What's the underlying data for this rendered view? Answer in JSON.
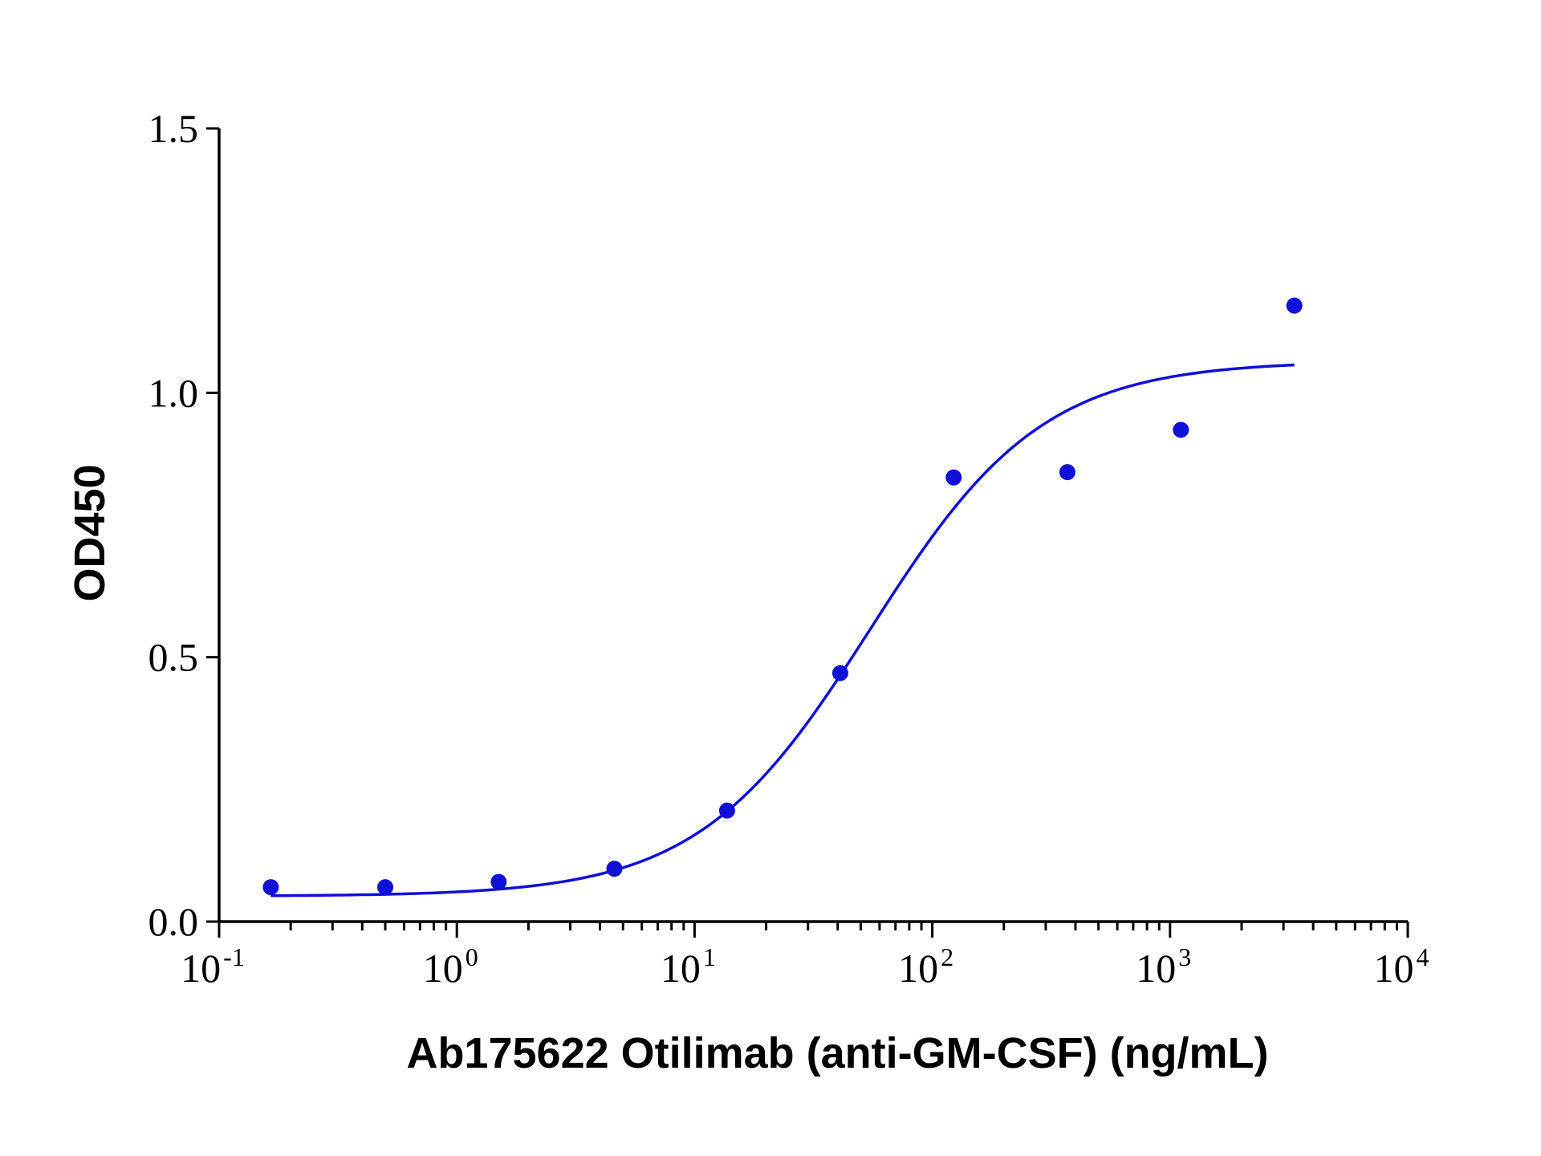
{
  "chart_data": {
    "type": "scatter",
    "xlabel": "Ab175622 Otilimab (anti-GM-CSF) (ng/mL)",
    "ylabel": "OD450",
    "x_scale": "log",
    "xlim": [
      0.1,
      10000
    ],
    "ylim": [
      0.0,
      1.5
    ],
    "y_ticks": [
      "0.0",
      "0.5",
      "1.0",
      "1.5"
    ],
    "x_ticks": [
      {
        "base": "10",
        "exp": "-1",
        "value": 0.1
      },
      {
        "base": "10",
        "exp": "0",
        "value": 1
      },
      {
        "base": "10",
        "exp": "1",
        "value": 10
      },
      {
        "base": "10",
        "exp": "2",
        "value": 100
      },
      {
        "base": "10",
        "exp": "3",
        "value": 1000
      },
      {
        "base": "10",
        "exp": "4",
        "value": 10000
      }
    ],
    "grid": false,
    "color": "#0f0fd8",
    "series": [
      {
        "points": [
          {
            "x": 0.165,
            "y": 0.065
          },
          {
            "x": 0.5,
            "y": 0.065
          },
          {
            "x": 1.5,
            "y": 0.075
          },
          {
            "x": 4.6,
            "y": 0.1
          },
          {
            "x": 13.7,
            "y": 0.21
          },
          {
            "x": 41,
            "y": 0.47
          },
          {
            "x": 123,
            "y": 0.84
          },
          {
            "x": 370,
            "y": 0.85
          },
          {
            "x": 1111,
            "y": 0.93
          },
          {
            "x": 3333,
            "y": 1.165
          }
        ],
        "fit": {
          "model": "4PL",
          "bottom": 0.048,
          "top": 1.06,
          "ec50": 55,
          "hill": 1.2,
          "x_range": [
            0.165,
            3333
          ]
        }
      }
    ]
  }
}
